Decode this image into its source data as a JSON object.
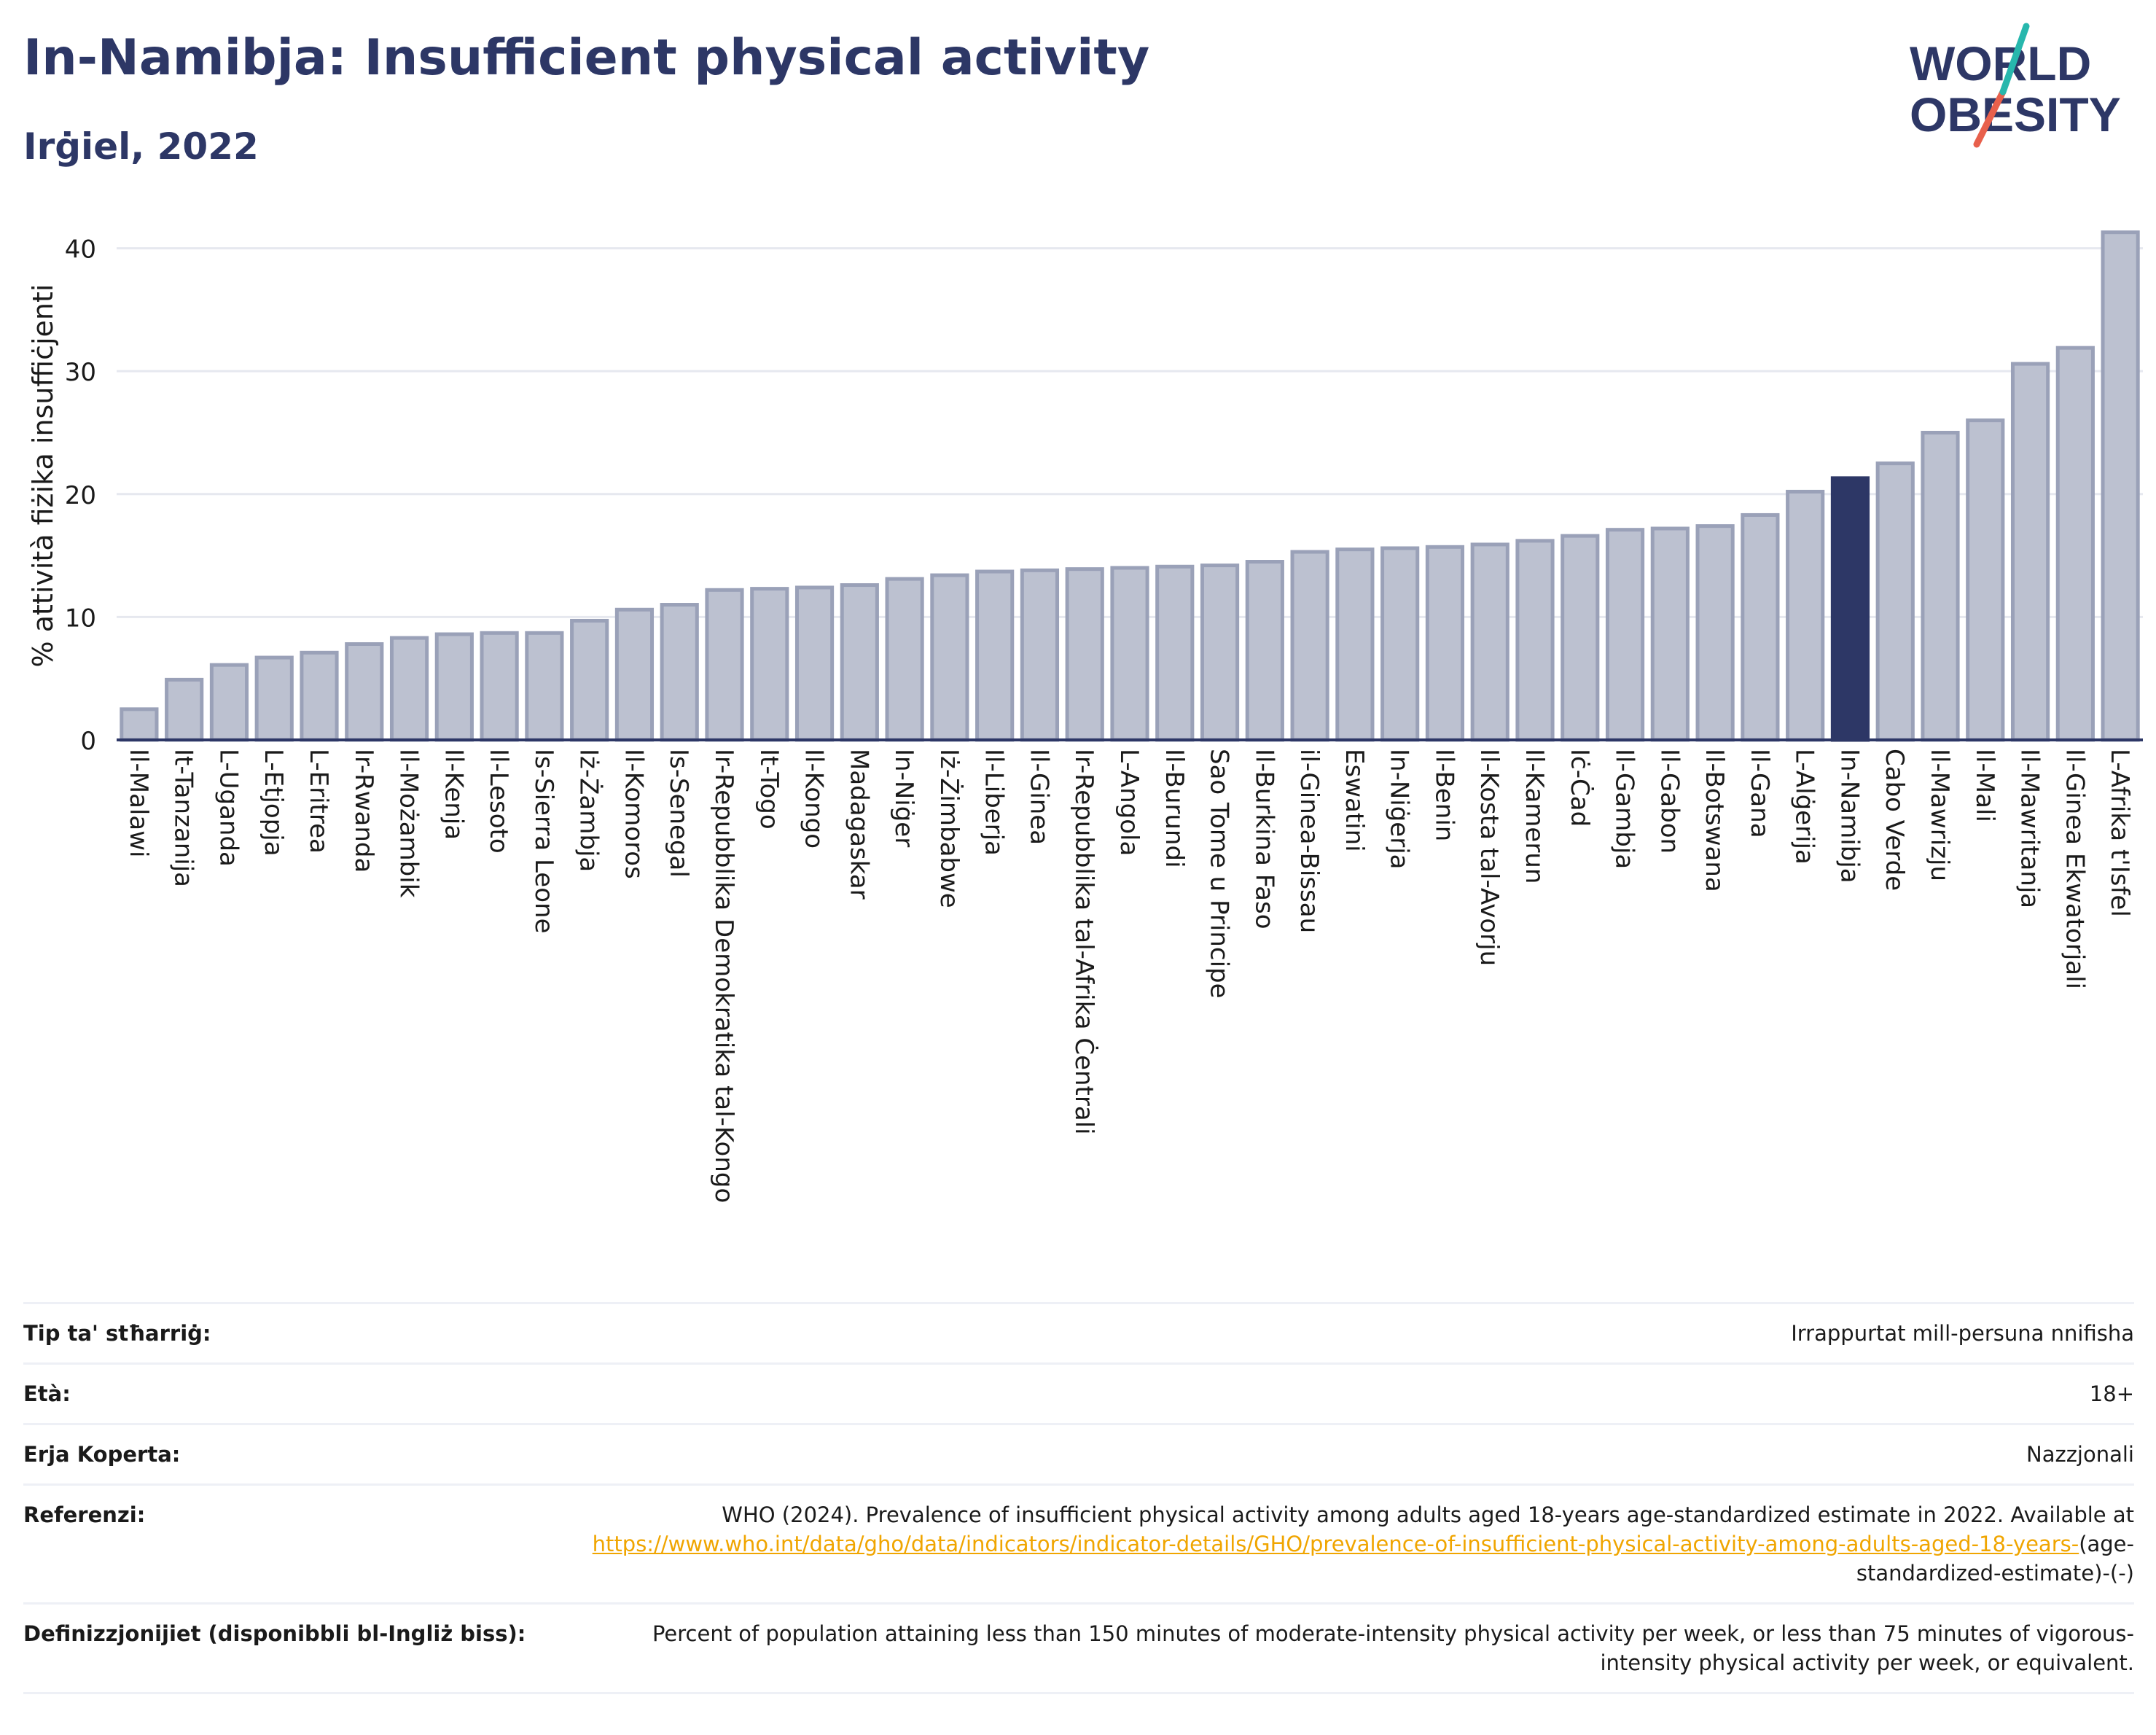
{
  "header": {
    "title": "In-Namibja: Insufficient physical activity",
    "subtitle": "Irġiel, 2022"
  },
  "logo": {
    "line1": "WORLD",
    "line2": "OBESITY"
  },
  "chart_data": {
    "type": "bar",
    "ylabel": "% attività fiżika insuffiċjenti",
    "ylim": [
      0,
      43
    ],
    "yticks": [
      0,
      10,
      20,
      30,
      40
    ],
    "grid": true,
    "highlight": "In-Namibja",
    "colors": {
      "bar": "#bcc1d0",
      "bar_edge": "#9aa1b8",
      "highlight": "#2d3766",
      "grid": "#e6e8ef",
      "axis": "#2d3766"
    },
    "categories": [
      "Il-Malawi",
      "It-Tanzanija",
      "L-Uganda",
      "L-Etjopja",
      "L-Eritrea",
      "Ir-Rwanda",
      "Il-Możambik",
      "Il-Kenja",
      "Il-Lesoto",
      "Is-Sierra Leone",
      "Iż-Żambja",
      "Il-Komoros",
      "Is-Senegal",
      "Ir-Repubblika Demokratika tal-Kongo",
      "It-Togo",
      "Il-Kongo",
      "Madagaskar",
      "In-Niġer",
      "Iż-Żimbabwe",
      "Il-Liberja",
      "Il-Ginea",
      "Ir-Repubblika tal-Afrika Ċentrali",
      "L-Angola",
      "Il-Burundi",
      "Sao Tome u Principe",
      "Il-Burkina Faso",
      "il-Ginea-Bissau",
      "Eswatini",
      "In-Niġerja",
      "Il-Benin",
      "Il-Kosta tal-Avorju",
      "Il-Kamerun",
      "Iċ-Ċad",
      "Il-Gambja",
      "Il-Gabon",
      "Il-Botswana",
      "Il-Gana",
      "L-Alġerija",
      "In-Namibja",
      "Cabo Verde",
      "Il-Mawrizju",
      "Il-Mali",
      "Il-Mawritanja",
      "Il-Ginea Ekwatorjali",
      "L-Afrika t'Isfel"
    ],
    "values": [
      2.5,
      4.9,
      6.1,
      6.7,
      7.1,
      7.8,
      8.3,
      8.6,
      8.7,
      8.7,
      9.7,
      10.6,
      11.0,
      12.2,
      12.3,
      12.4,
      12.6,
      13.1,
      13.4,
      13.7,
      13.8,
      13.9,
      14.0,
      14.1,
      14.2,
      14.5,
      15.3,
      15.5,
      15.6,
      15.7,
      15.9,
      16.2,
      16.6,
      17.1,
      17.2,
      17.4,
      18.3,
      20.2,
      21.3,
      22.5,
      25.0,
      26.0,
      30.6,
      31.9,
      41.3
    ]
  },
  "info": {
    "rows": [
      {
        "label": "Tip ta' stħarriġ:",
        "value": "Irrappurtat mill-persuna nnifisha"
      },
      {
        "label": "Età:",
        "value": "18+"
      },
      {
        "label": "Erja Koperta:",
        "value": "Nazzjonali"
      }
    ],
    "reference": {
      "label": "Referenzi:",
      "text": "WHO (2024). Prevalence of insufficient physical activity among adults aged 18-years age-standardized estimate in 2022. Available at ",
      "link": "https://www.who.int/data/gho/data/indicators/indicator-details/GHO/prevalence-of-insufficient-physical-activity-among-adults-aged-18-years-",
      "suffix": "(age-standardized-estimate)-(-)"
    },
    "definition": {
      "label": "Definizzjonijiet (disponibbli bl-Ingliż biss):",
      "value": "Percent of population attaining less than 150 minutes of moderate-intensity physical activity per week, or less than 75 minutes of vigorous-intensity physical activity per week, or equivalent."
    }
  }
}
